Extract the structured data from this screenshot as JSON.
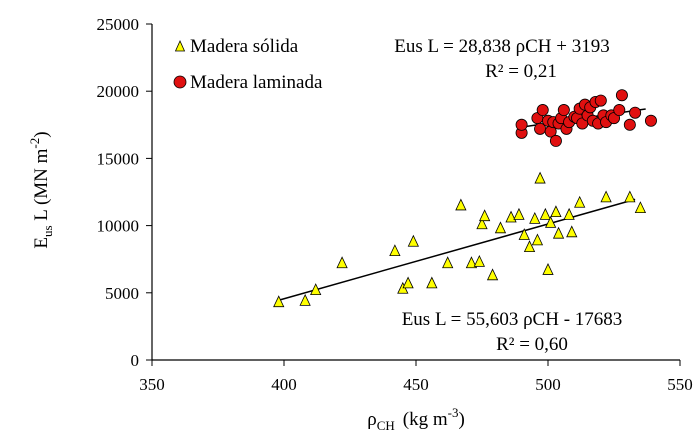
{
  "chart_data": {
    "type": "scatter",
    "xlim": [
      350,
      550
    ],
    "ylim": [
      0,
      25000
    ],
    "xticks": [
      "350",
      "400",
      "450",
      "500",
      "550"
    ],
    "yticks": [
      "0",
      "5000",
      "10000",
      "15000",
      "20000",
      "25000"
    ],
    "xlabel": {
      "main": "ρ",
      "sub": "CH",
      "units_pre": "(kg m",
      "units_sup": "-3",
      "units_post": ")"
    },
    "ylabel": {
      "main": "E",
      "sub": "us",
      "rest": " L  (MN m",
      "sup": "-2",
      "post": ")"
    },
    "legend_position": "top-left",
    "series": [
      {
        "name": "Madera sólida",
        "marker": "triangle",
        "color": "#ffff00",
        "points": [
          [
            398,
            4300
          ],
          [
            408,
            4400
          ],
          [
            412,
            5200
          ],
          [
            422,
            7200
          ],
          [
            442,
            8100
          ],
          [
            445,
            5300
          ],
          [
            447,
            5700
          ],
          [
            449,
            8800
          ],
          [
            456,
            5700
          ],
          [
            462,
            7200
          ],
          [
            467,
            11500
          ],
          [
            471,
            7200
          ],
          [
            474,
            7300
          ],
          [
            475,
            10100
          ],
          [
            476,
            10700
          ],
          [
            479,
            6300
          ],
          [
            482,
            9800
          ],
          [
            486,
            10600
          ],
          [
            489,
            10800
          ],
          [
            491,
            9300
          ],
          [
            493,
            8400
          ],
          [
            495,
            10500
          ],
          [
            496,
            8900
          ],
          [
            497,
            13500
          ],
          [
            499,
            10800
          ],
          [
            500,
            6700
          ],
          [
            501,
            10200
          ],
          [
            503,
            11000
          ],
          [
            504,
            9400
          ],
          [
            508,
            10800
          ],
          [
            509,
            9500
          ],
          [
            512,
            11700
          ],
          [
            522,
            12100
          ],
          [
            531,
            12100
          ],
          [
            535,
            11300
          ]
        ],
        "trendline": {
          "x": [
            398,
            533
          ],
          "y": [
            4447,
            11953
          ]
        },
        "equation": "Eus L = 55,603 ρCH - 17683",
        "r2": "R² = 0,60"
      },
      {
        "name": "Madera laminada",
        "marker": "circle",
        "color": "#e01010",
        "points": [
          [
            490,
            16900
          ],
          [
            490,
            17500
          ],
          [
            496,
            18000
          ],
          [
            497,
            17200
          ],
          [
            498,
            18600
          ],
          [
            500,
            17800
          ],
          [
            501,
            17000
          ],
          [
            502,
            17700
          ],
          [
            503,
            16300
          ],
          [
            504,
            17600
          ],
          [
            505,
            18000
          ],
          [
            506,
            18600
          ],
          [
            507,
            17200
          ],
          [
            508,
            17700
          ],
          [
            510,
            18100
          ],
          [
            511,
            18000
          ],
          [
            512,
            18700
          ],
          [
            513,
            17600
          ],
          [
            514,
            19000
          ],
          [
            515,
            18200
          ],
          [
            516,
            18800
          ],
          [
            517,
            17800
          ],
          [
            518,
            19200
          ],
          [
            519,
            17600
          ],
          [
            520,
            19300
          ],
          [
            521,
            18200
          ],
          [
            522,
            17700
          ],
          [
            524,
            18200
          ],
          [
            525,
            18000
          ],
          [
            527,
            18600
          ],
          [
            528,
            19700
          ],
          [
            531,
            17500
          ],
          [
            533,
            18400
          ],
          [
            539,
            17800
          ]
        ],
        "trendline": {
          "x": [
            490,
            537
          ],
          "y": [
            17324,
            18679
          ]
        },
        "equation": "Eus L = 28,838 ρCH + 3193",
        "r2": "R² = 0,21"
      }
    ]
  }
}
